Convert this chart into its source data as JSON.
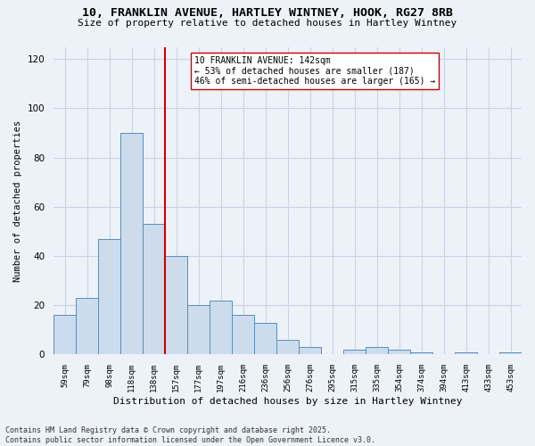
{
  "title_line1": "10, FRANKLIN AVENUE, HARTLEY WINTNEY, HOOK, RG27 8RB",
  "title_line2": "Size of property relative to detached houses in Hartley Wintney",
  "xlabel": "Distribution of detached houses by size in Hartley Wintney",
  "ylabel": "Number of detached properties",
  "categories": [
    "59sqm",
    "79sqm",
    "98sqm",
    "118sqm",
    "138sqm",
    "157sqm",
    "177sqm",
    "197sqm",
    "216sqm",
    "236sqm",
    "256sqm",
    "276sqm",
    "295sqm",
    "315sqm",
    "335sqm",
    "354sqm",
    "374sqm",
    "394sqm",
    "413sqm",
    "433sqm",
    "453sqm"
  ],
  "values": [
    16,
    23,
    47,
    90,
    53,
    40,
    20,
    22,
    16,
    13,
    6,
    3,
    0,
    2,
    3,
    2,
    1,
    0,
    1,
    0,
    1
  ],
  "bar_color": "#ccdcec",
  "bar_edge_color": "#5b8db8",
  "grid_color": "#c8d4e4",
  "background_color": "#edf2f9",
  "vline_x": 4.5,
  "vline_color": "#cc0000",
  "annotation_text": "10 FRANKLIN AVENUE: 142sqm\n← 53% of detached houses are smaller (187)\n46% of semi-detached houses are larger (165) →",
  "annotation_box_facecolor": "#ffffff",
  "annotation_box_edge": "#cc0000",
  "ylim": [
    0,
    125
  ],
  "yticks": [
    0,
    20,
    40,
    60,
    80,
    100,
    120
  ],
  "footnote": "Contains HM Land Registry data © Crown copyright and database right 2025.\nContains public sector information licensed under the Open Government Licence v3.0."
}
